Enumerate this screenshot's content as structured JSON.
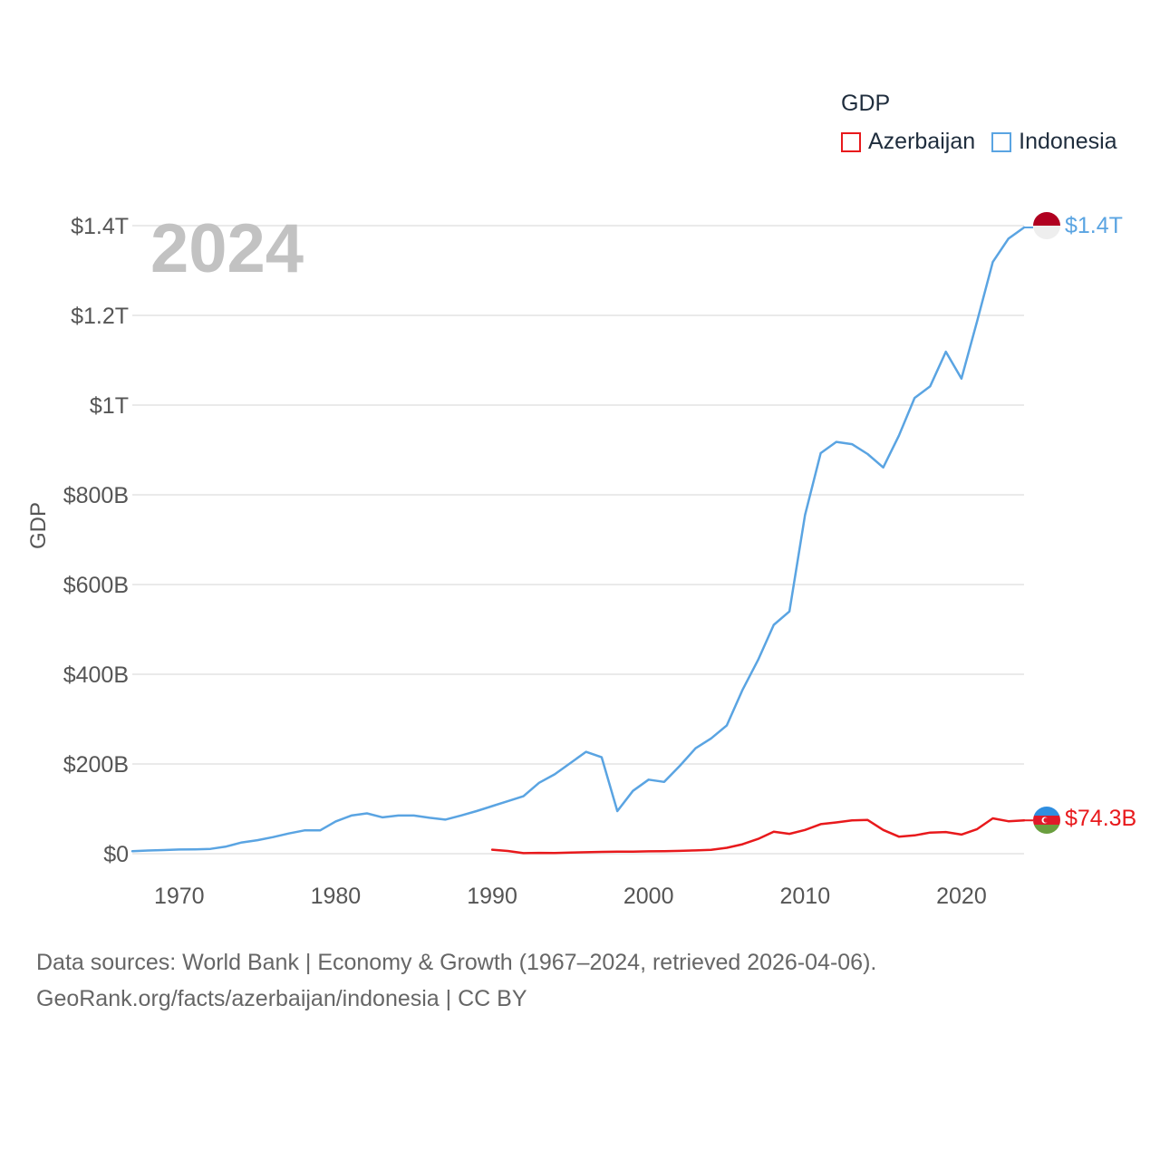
{
  "legend": {
    "title": "GDP",
    "items": [
      {
        "label": "Azerbaijan",
        "color": "#e8191c"
      },
      {
        "label": "Indonesia",
        "color": "#5aa4e2"
      }
    ]
  },
  "year_label": "2024",
  "end_labels": {
    "indonesia": "$1.4T",
    "azerbaijan": "$74.3B"
  },
  "footer": {
    "line1": "Data sources: World Bank | Economy & Growth (1967–2024, retrieved 2026-04-06).",
    "line2": "GeoRank.org/facts/azerbaijan/indonesia | CC BY"
  },
  "chart_data": {
    "type": "line",
    "title": "GDP",
    "xlabel": "",
    "ylabel": "GDP",
    "xlim": [
      1967,
      2024
    ],
    "ylim": [
      0,
      1400
    ],
    "value_units": "billions USD",
    "x_ticks": [
      1970,
      1980,
      1990,
      2000,
      2010,
      2020
    ],
    "y_ticks": [
      {
        "value": 0,
        "label": "$0"
      },
      {
        "value": 200,
        "label": "$200B"
      },
      {
        "value": 400,
        "label": "$400B"
      },
      {
        "value": 600,
        "label": "$600B"
      },
      {
        "value": 800,
        "label": "$800B"
      },
      {
        "value": 1000,
        "label": "$1T"
      },
      {
        "value": 1200,
        "label": "$1.2T"
      },
      {
        "value": 1400,
        "label": "$1.4T"
      }
    ],
    "series": [
      {
        "name": "Indonesia",
        "color": "#5aa4e2",
        "x": [
          1967,
          1968,
          1969,
          1970,
          1971,
          1972,
          1973,
          1974,
          1975,
          1976,
          1977,
          1978,
          1979,
          1980,
          1981,
          1982,
          1983,
          1984,
          1985,
          1986,
          1987,
          1988,
          1989,
          1990,
          1991,
          1992,
          1993,
          1994,
          1995,
          1996,
          1997,
          1998,
          1999,
          2000,
          2001,
          2002,
          2003,
          2004,
          2005,
          2006,
          2007,
          2008,
          2009,
          2010,
          2011,
          2012,
          2013,
          2014,
          2015,
          2016,
          2017,
          2018,
          2019,
          2020,
          2021,
          2022,
          2023,
          2024
        ],
        "values": [
          5.7,
          7,
          8,
          9.2,
          9.6,
          10.8,
          16,
          25,
          30,
          37,
          45,
          52,
          52,
          72,
          85,
          90,
          81,
          85,
          85,
          80,
          76,
          85,
          95,
          106,
          117,
          128,
          158,
          177,
          202,
          227,
          215,
          95,
          140,
          165,
          160,
          196,
          235,
          257,
          286,
          365,
          432,
          510,
          540,
          755,
          893,
          918,
          913,
          891,
          861,
          932,
          1016,
          1042,
          1119,
          1059,
          1187,
          1319,
          1371,
          1396
        ]
      },
      {
        "name": "Azerbaijan",
        "color": "#e8191c",
        "x": [
          1990,
          1991,
          1992,
          1993,
          1994,
          1995,
          1996,
          1997,
          1998,
          1999,
          2000,
          2001,
          2002,
          2003,
          2004,
          2005,
          2006,
          2007,
          2008,
          2009,
          2010,
          2011,
          2012,
          2013,
          2014,
          2015,
          2016,
          2017,
          2018,
          2019,
          2020,
          2021,
          2022,
          2023,
          2024
        ],
        "values": [
          8.9,
          6,
          1.2,
          1.9,
          1.6,
          2.4,
          3.2,
          4,
          4.4,
          4.6,
          5.3,
          5.7,
          6.2,
          7.3,
          8.7,
          13.2,
          21,
          33,
          48.9,
          44.3,
          52.9,
          65.9,
          69.7,
          74.2,
          75.2,
          53,
          37.9,
          40.9,
          47.1,
          48.2,
          42.7,
          54.8,
          78.7,
          72.4,
          74.3
        ]
      }
    ]
  }
}
